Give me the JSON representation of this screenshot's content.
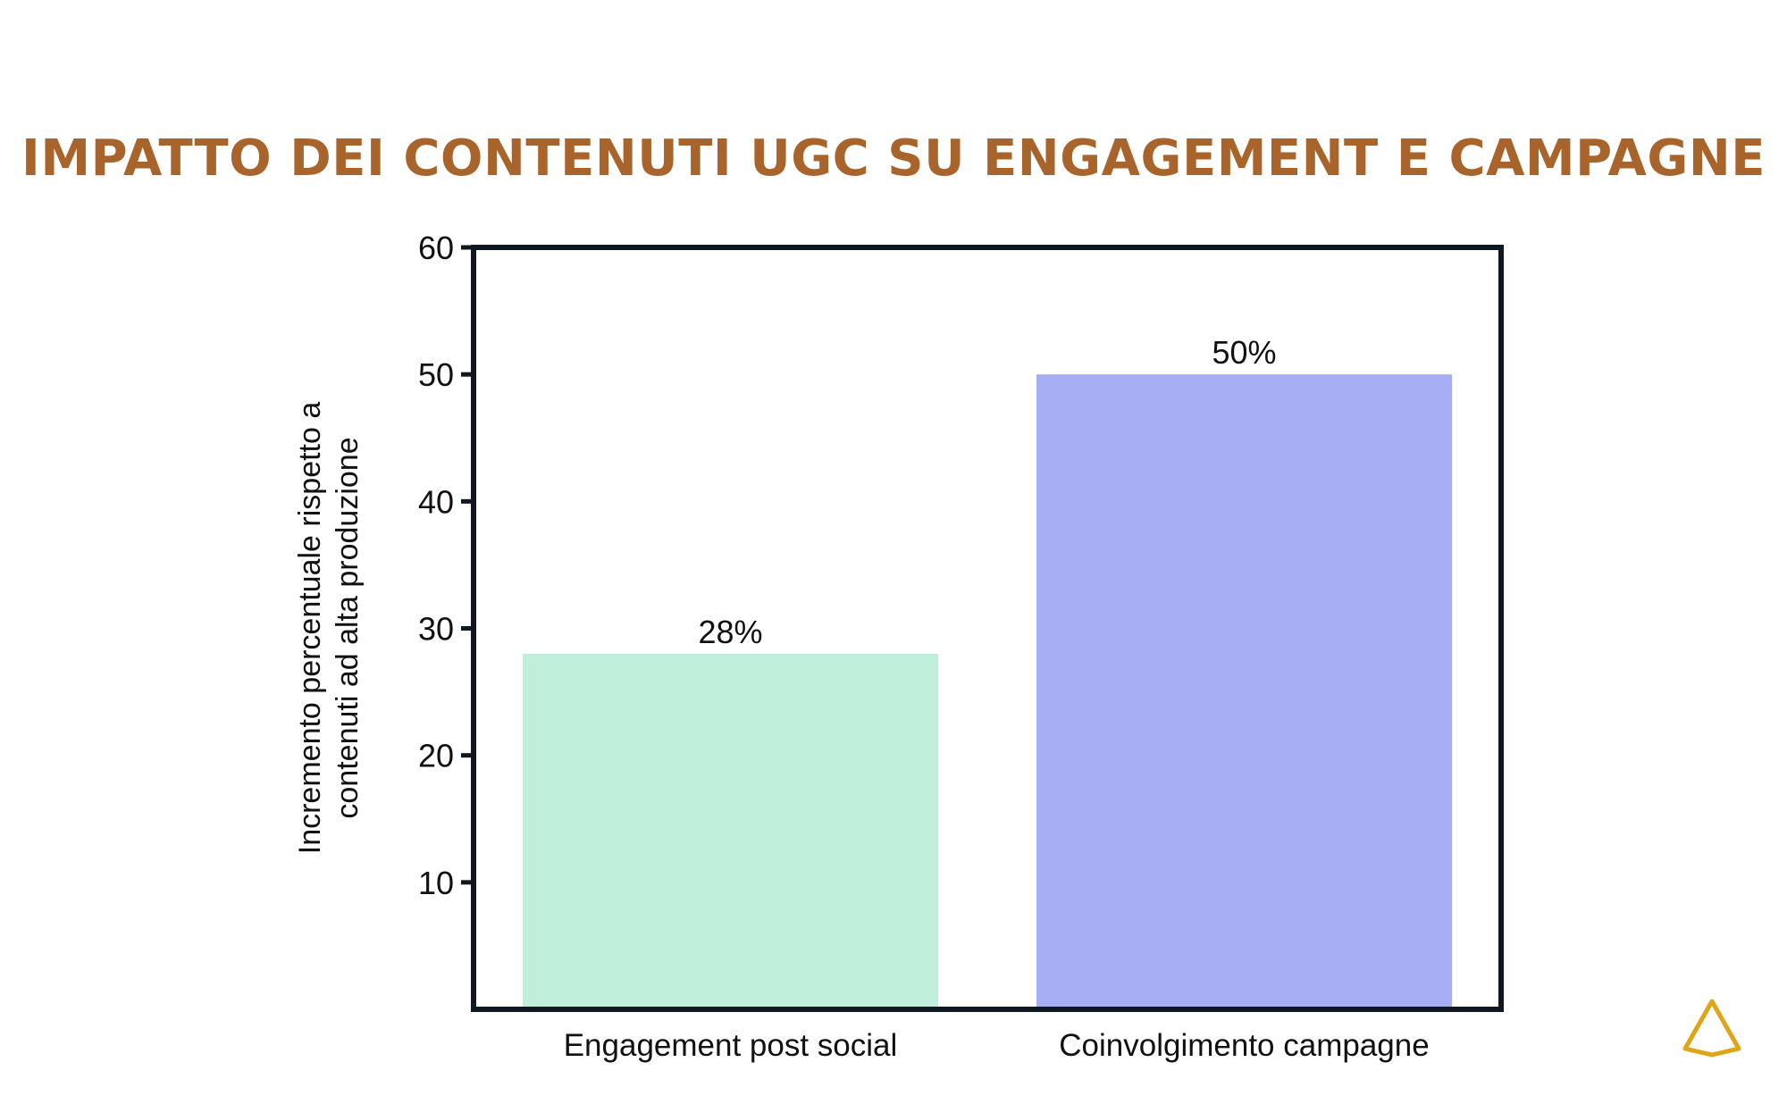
{
  "colors": {
    "title": "#A8642B",
    "frame": "#0F1720",
    "bar_1": "#BFEEDA",
    "bar_2": "#A8AEF3",
    "logo": "#E0A418"
  },
  "chart_data": {
    "type": "bar",
    "title": "IMPATTO DEI CONTENUTI UGC SU ENGAGEMENT E CAMPAGNE",
    "categories": [
      "Engagement post social",
      "Coinvolgimento campagne"
    ],
    "values": [
      28,
      50
    ],
    "data_labels": [
      "28%",
      "50%"
    ],
    "xlabel": "",
    "ylabel_lines": [
      "Incremento percentuale rispetto a",
      "contenuti ad alta produzione"
    ],
    "ylim": [
      0,
      60
    ],
    "yticks": [
      10,
      20,
      30,
      40,
      50,
      60
    ],
    "grid": false,
    "legend": "none"
  },
  "logo_icon": "triangle-outline-icon"
}
